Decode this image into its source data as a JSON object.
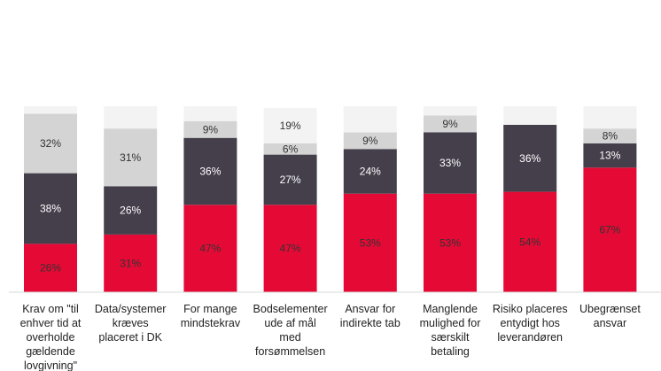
{
  "chart_data": {
    "type": "bar",
    "stacked": true,
    "categories": [
      "Krav om \"til enhver tid at overholde gældende lovgivning\"",
      "Data/systemer kræves placeret i DK",
      "For mange mindstekrav",
      "Bodselementer ude af mål med forsømmelsen",
      "Ansvar for indirekte tab",
      "Manglende mulighed for særskilt betaling",
      "Risiko placeres entydigt hos leverandøren",
      "Ubegrænset ansvar"
    ],
    "category_lines": [
      [
        "Krav om \"til",
        "enhver tid at",
        "overholde",
        "gældende",
        "lovgivning\""
      ],
      [
        "Data/systemer",
        "kræves",
        "placeret i DK"
      ],
      [
        "For mange",
        "mindstekrav"
      ],
      [
        "Bodselementer",
        "ude af mål",
        "med",
        "forsømmelsen"
      ],
      [
        "Ansvar for",
        "indirekte tab"
      ],
      [
        "Manglende",
        "mulighed for",
        "særskilt",
        "betaling"
      ],
      [
        "Risiko placeres",
        "entydigt hos",
        "leverandøren"
      ],
      [
        "Ubegrænset",
        "ansvar"
      ]
    ],
    "series": [
      {
        "color": "#e50a35",
        "text_color": "#333333",
        "values": [
          26,
          31,
          47,
          47,
          53,
          53,
          54,
          67
        ]
      },
      {
        "color": "#453f4c",
        "text_color": "#ffffff",
        "values": [
          38,
          26,
          36,
          27,
          24,
          33,
          36,
          13
        ]
      },
      {
        "color": "#d4d4d4",
        "text_color": "#333333",
        "values": [
          32,
          31,
          9,
          6,
          9,
          9,
          0,
          8
        ]
      },
      {
        "color": "#f3f3f3",
        "text_color": "#333333",
        "values": [
          4,
          12,
          8,
          19,
          14,
          5,
          10,
          12
        ]
      }
    ],
    "labels": [
      [
        "26%",
        "31%",
        "47%",
        "47%",
        "53%",
        "53%",
        "54%",
        "67%"
      ],
      [
        "38%",
        "26%",
        "36%",
        "27%",
        "24%",
        "33%",
        "36%",
        "13%"
      ],
      [
        "32%",
        "31%",
        "9%",
        "6%",
        "9%",
        "9%",
        "",
        "8%"
      ],
      [
        "",
        "",
        "",
        "19%",
        "",
        "",
        "",
        ""
      ]
    ],
    "ylim": [
      0,
      100
    ],
    "grid": false,
    "legend": "none",
    "title": "",
    "xlabel": "",
    "ylabel": ""
  }
}
